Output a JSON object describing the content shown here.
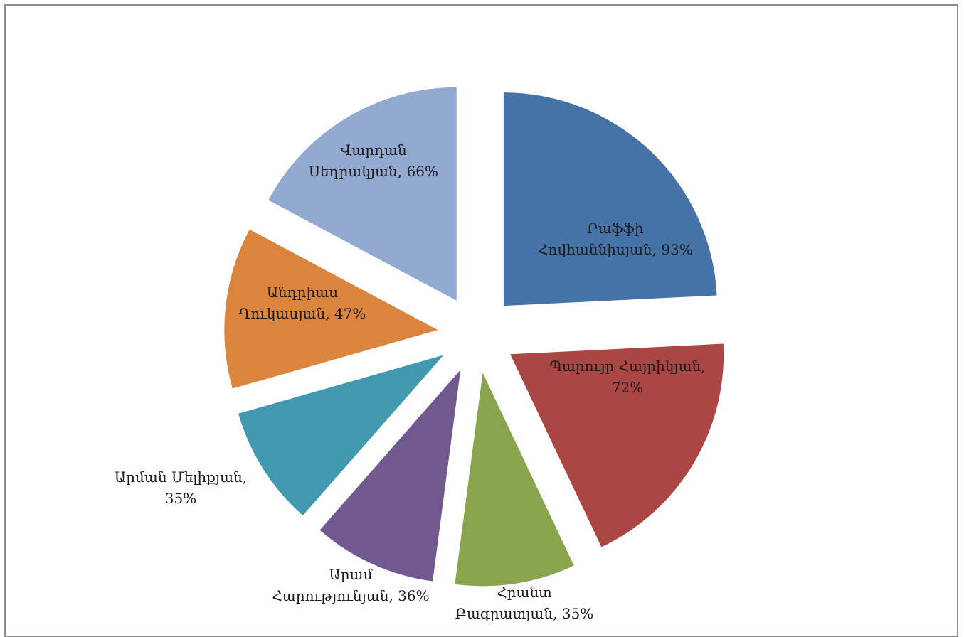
{
  "chart_data": {
    "type": "pie",
    "exploded": true,
    "title": "",
    "categories": [
      "Րաֆֆի Հովհաննիսյան",
      "Պարույր Հայրիկյան",
      "Հրանտ Բագրատյան",
      "Արամ Հարությունյան",
      "Արման Մելիքյան",
      "Անդրիաս Ղուկասյան",
      "Վարդան Սեդրակյան"
    ],
    "values": [
      93,
      72,
      35,
      36,
      35,
      47,
      66
    ],
    "unit": "%",
    "colors": [
      "#4572a7",
      "#aa4643",
      "#89a54e",
      "#71588f",
      "#4198af",
      "#db843d",
      "#93a9cf"
    ],
    "data_labels": [
      [
        "Րաֆֆի",
        "Հովհաննիսյան, 93%"
      ],
      [
        "Պարույր Հայրիկյան,",
        "72%"
      ],
      [
        "Հրանտ",
        "Բագրատյան, 35%"
      ],
      [
        "Արամ",
        "Հարությունյան, 36%"
      ],
      [
        "Արման Մելիքյան,",
        "35%"
      ],
      [
        "Անդրիաս",
        "Ղուկասյան, 47%"
      ],
      [
        "Վարդան",
        "Սեդրակյան, 66%"
      ]
    ],
    "legend": "none"
  }
}
